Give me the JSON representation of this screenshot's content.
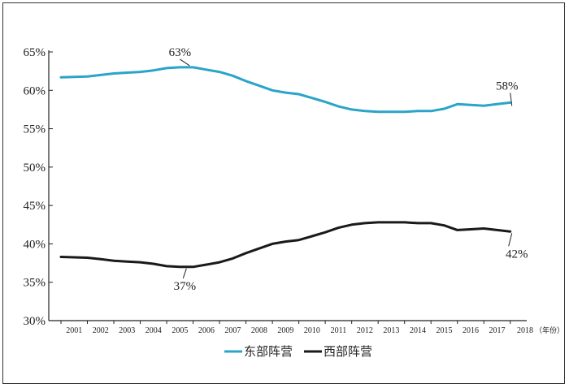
{
  "chart_data": {
    "type": "line",
    "title": "",
    "xlabel": "",
    "ylabel": "",
    "x_unit": "（年份）",
    "ylim": [
      30,
      65
    ],
    "y_ticks": [
      "30%",
      "35%",
      "40%",
      "45%",
      "50%",
      "55%",
      "60%",
      "65%"
    ],
    "x_ticks": [
      "2001",
      "2002",
      "2003",
      "2004",
      "2005",
      "2006",
      "2007",
      "2008",
      "2009",
      "2010",
      "2011",
      "2012",
      "2013",
      "2014",
      "2015",
      "2016",
      "2017",
      "2018"
    ],
    "x": [
      2000.5,
      2001.5,
      2002,
      2002.5,
      2003,
      2003.5,
      2004,
      2004.5,
      2005,
      2005.5,
      2006,
      2006.5,
      2007,
      2007.5,
      2008,
      2008.5,
      2009,
      2009.5,
      2010,
      2010.5,
      2011,
      2011.5,
      2012,
      2012.5,
      2013,
      2013.5,
      2014,
      2014.5,
      2015,
      2015.5,
      2016,
      2016.5,
      2017,
      2017.5
    ],
    "series": [
      {
        "name": "东部阵营",
        "color": "#2aa4c9",
        "values": [
          61.7,
          61.8,
          62.0,
          62.2,
          62.3,
          62.4,
          62.6,
          62.9,
          63.0,
          63.0,
          62.7,
          62.4,
          61.9,
          61.2,
          60.6,
          60.0,
          59.7,
          59.5,
          59.0,
          58.5,
          57.9,
          57.5,
          57.3,
          57.2,
          57.2,
          57.2,
          57.3,
          57.3,
          57.6,
          58.2,
          58.1,
          58.0,
          58.2,
          58.4
        ]
      },
      {
        "name": "西部阵营",
        "color": "#1a1a1a",
        "values": [
          38.3,
          38.2,
          38.0,
          37.8,
          37.7,
          37.6,
          37.4,
          37.1,
          37.0,
          37.0,
          37.3,
          37.6,
          38.1,
          38.8,
          39.4,
          40.0,
          40.3,
          40.5,
          41.0,
          41.5,
          42.1,
          42.5,
          42.7,
          42.8,
          42.8,
          42.8,
          42.7,
          42.7,
          42.4,
          41.8,
          41.9,
          42.0,
          41.8,
          41.6
        ]
      }
    ],
    "annotations": [
      {
        "text": "63%",
        "series": 0,
        "x": 2005.0,
        "value": 63.0
      },
      {
        "text": "58%",
        "series": 0,
        "x": 2017.5,
        "value": 58.4
      },
      {
        "text": "37%",
        "series": 1,
        "x": 2005.0,
        "value": 37.0
      },
      {
        "text": "42%",
        "series": 1,
        "x": 2017.5,
        "value": 41.6
      }
    ],
    "legend": {
      "position": "bottom-center",
      "entries": [
        "东部阵营",
        "西部阵营"
      ]
    },
    "grid": false
  }
}
